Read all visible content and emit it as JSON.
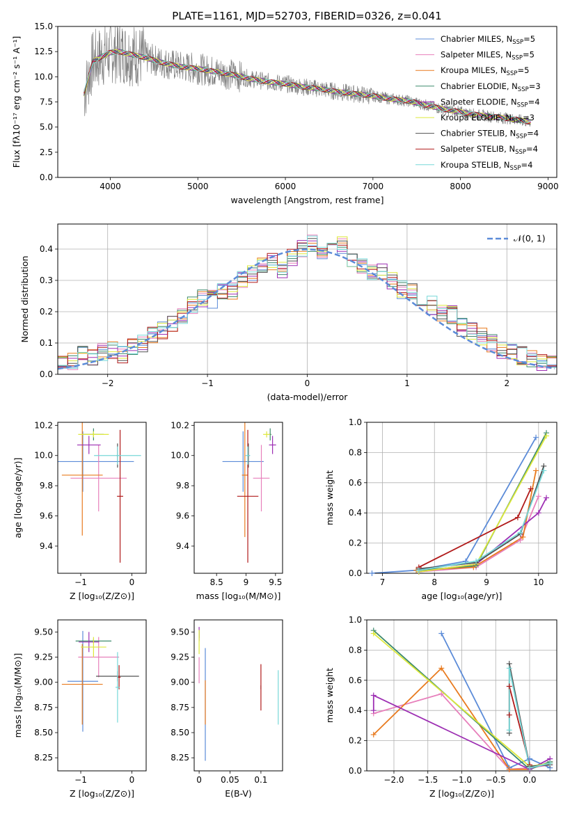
{
  "figure": {
    "title": "PLATE=1161, MJD=52703, FIBERID=0326, z=0.041"
  },
  "series_colors": {
    "Chabrier MILES": "#5b8bd8",
    "Salpeter MILES": "#e77fbb",
    "Kroupa MILES": "#e87a1e",
    "Chabrier ELODIE": "#3d8a6d",
    "Salpeter ELODIE": "#9d2fb3",
    "Kroupa ELODIE": "#dde83a",
    "Chabrier STELIB": "#505050",
    "Salpeter STELIB": "#b01919",
    "Kroupa STELIB": "#77d8d8"
  },
  "chart_data": [
    {
      "id": "spectrum",
      "type": "line",
      "xlabel": "wavelength [Angstrom, rest frame]",
      "ylabel": "Flux [fλ10⁻¹⁷ erg cm⁻² s⁻¹ A⁻¹]",
      "xlim": [
        3400,
        9100
      ],
      "ylim": [
        0,
        15
      ],
      "xticks": [
        4000,
        5000,
        6000,
        7000,
        8000,
        9000
      ],
      "yticks": [
        0.0,
        2.5,
        5.0,
        7.5,
        10.0,
        12.5,
        15.0
      ],
      "grid": false,
      "legend_position": "top-right",
      "legend": [
        {
          "name": "Chabrier MILES",
          "nssp": "5"
        },
        {
          "name": "Salpeter MILES",
          "nssp": "5"
        },
        {
          "name": "Kroupa MILES",
          "nssp": "5"
        },
        {
          "name": "Chabrier ELODIE",
          "nssp": "3"
        },
        {
          "name": "Salpeter ELODIE",
          "nssp": "4"
        },
        {
          "name": "Kroupa ELODIE",
          "nssp": "3"
        },
        {
          "name": "Chabrier STELIB",
          "nssp": "4"
        },
        {
          "name": "Salpeter STELIB",
          "nssp": "4"
        },
        {
          "name": "Kroupa STELIB",
          "nssp": "4"
        }
      ],
      "data_envelope": {
        "x": [
          3700,
          3800,
          3900,
          4000,
          4100,
          4200,
          4400,
          4600,
          4800,
          5000,
          5200,
          5400,
          5600,
          5800,
          6000,
          6200,
          6400,
          6600,
          6800,
          7000,
          7200,
          7400,
          7600,
          7800,
          8000,
          8200,
          8400,
          8600,
          8800
        ],
        "y": [
          8.3,
          11.5,
          12.0,
          12.4,
          12.5,
          12.3,
          11.9,
          11.4,
          11.0,
          10.8,
          10.5,
          10.2,
          9.8,
          9.5,
          9.3,
          9.0,
          8.8,
          8.5,
          8.3,
          8.1,
          7.8,
          7.6,
          7.2,
          6.8,
          6.5,
          6.2,
          6.0,
          5.8,
          5.5
        ]
      }
    },
    {
      "id": "residuals",
      "type": "histogram",
      "xlabel": "(data-model)/error",
      "ylabel": "Normed distribution",
      "xlim": [
        -2.5,
        2.5
      ],
      "ylim": [
        0,
        0.48
      ],
      "xticks": [
        -2,
        -1,
        0,
        1,
        2
      ],
      "yticks": [
        0.0,
        0.1,
        0.2,
        0.3,
        0.4
      ],
      "grid": true,
      "legend_position": "top-right",
      "legend": [
        "N(0,1)"
      ],
      "bin_edges_start": -2.5,
      "bin_width": 0.1,
      "histogram": [
        0.03,
        0.04,
        0.06,
        0.05,
        0.07,
        0.08,
        0.06,
        0.09,
        0.1,
        0.13,
        0.14,
        0.16,
        0.19,
        0.22,
        0.24,
        0.24,
        0.26,
        0.27,
        0.3,
        0.32,
        0.35,
        0.36,
        0.33,
        0.37,
        0.4,
        0.42,
        0.38,
        0.4,
        0.41,
        0.37,
        0.35,
        0.32,
        0.33,
        0.3,
        0.27,
        0.26,
        0.23,
        0.22,
        0.2,
        0.19,
        0.15,
        0.14,
        0.12,
        0.1,
        0.08,
        0.07,
        0.06,
        0.05,
        0.04,
        0.04
      ]
    },
    {
      "id": "age-vs-Z",
      "type": "errorbar",
      "xlabel": "Z [log₁₀(Z/Z⊙)]",
      "ylabel": "age  [log₁₀(age/yr)]",
      "xlim": [
        -1.45,
        0.28
      ],
      "ylim": [
        9.22,
        10.22
      ],
      "xticks": [
        -1,
        0
      ],
      "yticks": [
        9.4,
        9.6,
        9.8,
        10.0,
        10.2
      ],
      "points": [
        {
          "series": "Chabrier MILES",
          "x": -0.96,
          "y": 9.96,
          "xerr": 1.0,
          "yerr": 0.2
        },
        {
          "series": "Salpeter MILES",
          "x": -0.65,
          "y": 9.85,
          "xerr": 0.55,
          "yerr": 0.22
        },
        {
          "series": "Kroupa MILES",
          "x": -0.97,
          "y": 9.87,
          "xerr": 0.4,
          "yerr": 0.4
        },
        {
          "series": "Chabrier ELODIE",
          "x": -0.75,
          "y": 10.14,
          "xerr": 0.2,
          "yerr": 0.04
        },
        {
          "series": "Salpeter ELODIE",
          "x": -0.84,
          "y": 10.07,
          "xerr": 0.23,
          "yerr": 0.06
        },
        {
          "series": "Kroupa ELODIE",
          "x": -0.75,
          "y": 10.14,
          "xerr": 0.3,
          "yerr": 0.02
        },
        {
          "series": "Chabrier STELIB",
          "x": -0.28,
          "y": 10.0,
          "xerr": 0.02,
          "yerr": 0.08
        },
        {
          "series": "Salpeter STELIB",
          "x": -0.23,
          "y": 9.73,
          "xerr": 0.06,
          "yerr": 0.44
        },
        {
          "series": "Kroupa STELIB",
          "x": -0.28,
          "y": 10.0,
          "xerr": 0.46,
          "yerr": 0.06
        }
      ]
    },
    {
      "id": "age-vs-mass",
      "type": "errorbar",
      "xlabel": "mass [log₁₀(M/M⊙)]",
      "ylabel": "",
      "xlim": [
        8.12,
        9.62
      ],
      "ylim": [
        9.22,
        10.22
      ],
      "xticks": [
        8.5,
        9.0,
        9.5
      ],
      "yticks": [
        9.4,
        9.6,
        9.8,
        10.0,
        10.2
      ],
      "points": [
        {
          "series": "Chabrier MILES",
          "x": 8.95,
          "y": 9.96,
          "xerr": 0.35,
          "yerr": 0.2
        },
        {
          "series": "Salpeter MILES",
          "x": 9.26,
          "y": 9.85,
          "xerr": 0.14,
          "yerr": 0.22
        },
        {
          "series": "Kroupa MILES",
          "x": 8.98,
          "y": 9.87,
          "xerr": 0.05,
          "yerr": 0.41
        },
        {
          "series": "Chabrier ELODIE",
          "x": 9.41,
          "y": 10.14,
          "xerr": 0.02,
          "yerr": 0.04
        },
        {
          "series": "Salpeter ELODIE",
          "x": 9.45,
          "y": 10.07,
          "xerr": 0.06,
          "yerr": 0.06
        },
        {
          "series": "Kroupa ELODIE",
          "x": 9.35,
          "y": 10.14,
          "xerr": 0.06,
          "yerr": 0.02
        },
        {
          "series": "Chabrier STELIB",
          "x": 9.04,
          "y": 10.0,
          "xerr": 0.02,
          "yerr": 0.08
        },
        {
          "series": "Salpeter STELIB",
          "x": 9.03,
          "y": 9.73,
          "xerr": 0.18,
          "yerr": 0.44
        },
        {
          "series": "Kroupa STELIB",
          "x": 9.03,
          "y": 10.0,
          "xerr": 0.04,
          "yerr": 0.06
        }
      ]
    },
    {
      "id": "weight-vs-age",
      "type": "line",
      "xlabel": "age  [log₁₀(age/yr)]",
      "ylabel": "mass weight",
      "xlim": [
        6.7,
        10.35
      ],
      "ylim": [
        0,
        1
      ],
      "xticks": [
        7,
        8,
        9,
        10
      ],
      "yticks": [
        0.0,
        0.2,
        0.4,
        0.6,
        0.8,
        1.0
      ],
      "grid": true,
      "series": [
        {
          "color": "Chabrier MILES",
          "x": [
            6.8,
            7.65,
            8.6,
            9.95
          ],
          "y": [
            0.0,
            0.02,
            0.08,
            0.9
          ]
        },
        {
          "color": "Salpeter MILES",
          "x": [
            7.7,
            8.8,
            9.65,
            10.0
          ],
          "y": [
            0.01,
            0.04,
            0.22,
            0.51
          ]
        },
        {
          "color": "Kroupa MILES",
          "x": [
            7.65,
            8.75,
            9.7,
            9.95
          ],
          "y": [
            0.02,
            0.04,
            0.24,
            0.68
          ]
        },
        {
          "color": "Chabrier ELODIE",
          "x": [
            7.7,
            8.8,
            10.15
          ],
          "y": [
            0.02,
            0.05,
            0.93
          ]
        },
        {
          "color": "Salpeter ELODIE",
          "x": [
            7.7,
            8.8,
            10.0,
            10.15
          ],
          "y": [
            0.01,
            0.06,
            0.4,
            0.5
          ]
        },
        {
          "color": "Kroupa ELODIE",
          "x": [
            7.7,
            8.8,
            10.15
          ],
          "y": [
            0.01,
            0.06,
            0.91
          ]
        },
        {
          "color": "Chabrier STELIB",
          "x": [
            7.7,
            8.8,
            9.65,
            10.1
          ],
          "y": [
            0.03,
            0.07,
            0.26,
            0.71
          ]
        },
        {
          "color": "Salpeter STELIB",
          "x": [
            7.7,
            9.6,
            9.85
          ],
          "y": [
            0.04,
            0.37,
            0.56
          ]
        },
        {
          "color": "Kroupa STELIB",
          "x": [
            7.7,
            8.8,
            9.65,
            10.1
          ],
          "y": [
            0.02,
            0.08,
            0.27,
            0.68
          ]
        }
      ]
    },
    {
      "id": "mass-vs-Z",
      "type": "errorbar",
      "xlabel": "Z [log₁₀(Z/Z⊙)]",
      "ylabel": "mass [log₁₀(M/M⊙)]",
      "xlim": [
        -1.45,
        0.28
      ],
      "ylim": [
        8.12,
        9.62
      ],
      "xticks": [
        -1,
        0
      ],
      "yticks": [
        8.25,
        8.5,
        8.75,
        9.0,
        9.25,
        9.5
      ],
      "points": [
        {
          "series": "Chabrier MILES",
          "x": -0.96,
          "y": 9.01,
          "xerr": 0.3,
          "yerr": 0.5
        },
        {
          "series": "Salpeter MILES",
          "x": -0.65,
          "y": 9.25,
          "xerr": 0.4,
          "yerr": 0.2
        },
        {
          "series": "Kroupa MILES",
          "x": -0.97,
          "y": 8.98,
          "xerr": 0.4,
          "yerr": 0.4
        },
        {
          "series": "Chabrier ELODIE",
          "x": -0.75,
          "y": 9.41,
          "xerr": 0.35,
          "yerr": 0.02
        },
        {
          "series": "Salpeter ELODIE",
          "x": -0.84,
          "y": 9.4,
          "xerr": 0.2,
          "yerr": 0.1
        },
        {
          "series": "Kroupa ELODIE",
          "x": -0.75,
          "y": 9.35,
          "xerr": 0.25,
          "yerr": 0.1
        },
        {
          "series": "Chabrier STELIB",
          "x": -0.28,
          "y": 9.06,
          "xerr": 0.42,
          "yerr": 0.05
        },
        {
          "series": "Salpeter STELIB",
          "x": -0.25,
          "y": 9.05,
          "xerr": 0.03,
          "yerr": 0.12
        },
        {
          "series": "Kroupa STELIB",
          "x": -0.28,
          "y": 8.95,
          "xerr": 0.04,
          "yerr": 0.35
        }
      ]
    },
    {
      "id": "mass-vs-ebv",
      "type": "errorbar",
      "xlabel": "E(B-V)",
      "ylabel": "",
      "xlim": [
        -0.008,
        0.135
      ],
      "ylim": [
        8.12,
        9.62
      ],
      "xticks": [
        0.0,
        0.05,
        0.1
      ],
      "yticks": [
        8.25,
        8.5,
        8.75,
        9.0,
        9.25,
        9.5
      ],
      "points": [
        {
          "series": "Chabrier MILES",
          "x": 0.01,
          "y": 8.78,
          "xerr": 0,
          "yerr": 0.56
        },
        {
          "series": "Salpeter MILES",
          "x": 0.0,
          "y": 9.12,
          "xerr": 0,
          "yerr": 0.13
        },
        {
          "series": "Kroupa MILES",
          "x": 0.01,
          "y": 8.8,
          "xerr": 0,
          "yerr": 0.22
        },
        {
          "series": "Chabrier ELODIE",
          "x": 0.0,
          "y": 9.48,
          "xerr": 0,
          "yerr": 0.04
        },
        {
          "series": "Salpeter ELODIE",
          "x": 0.0,
          "y": 9.48,
          "xerr": 0,
          "yerr": 0.07
        },
        {
          "series": "Kroupa ELODIE",
          "x": 0.0,
          "y": 9.4,
          "xerr": 0,
          "yerr": 0.12
        },
        {
          "series": "Chabrier STELIB",
          "x": 0.1,
          "y": 8.95,
          "xerr": 0,
          "yerr": 0.02
        },
        {
          "series": "Salpeter STELIB",
          "x": 0.1,
          "y": 8.95,
          "xerr": 0,
          "yerr": 0.23
        },
        {
          "series": "Kroupa STELIB",
          "x": 0.128,
          "y": 8.85,
          "xerr": 0,
          "yerr": 0.27
        }
      ]
    },
    {
      "id": "weight-vs-Z",
      "type": "line",
      "xlabel": "Z [log₁₀(Z/Z⊙)]",
      "ylabel": "mass weight",
      "xlim": [
        -2.4,
        0.4
      ],
      "ylim": [
        0,
        1
      ],
      "xticks": [
        -2.0,
        -1.5,
        -1.0,
        -0.5,
        0.0
      ],
      "yticks": [
        0.0,
        0.2,
        0.4,
        0.6,
        0.8,
        1.0
      ],
      "grid": true,
      "series": [
        {
          "color": "Chabrier MILES",
          "x": [
            -1.3,
            -0.3,
            0.0,
            0.3
          ],
          "y": [
            0.91,
            0.02,
            0.08,
            0.02
          ]
        },
        {
          "color": "Salpeter MILES",
          "x": [
            -2.3,
            -1.3,
            -0.3,
            0.0,
            0.3
          ],
          "y": [
            0.38,
            0.51,
            0.01,
            0.02,
            0.04
          ]
        },
        {
          "color": "Kroupa MILES",
          "x": [
            -2.3,
            -1.3,
            -0.3,
            0.0,
            0.3
          ],
          "y": [
            0.24,
            0.68,
            0.01,
            0.01,
            0.06
          ]
        },
        {
          "color": "Chabrier ELODIE",
          "x": [
            -2.3,
            0.0,
            0.3
          ],
          "y": [
            0.93,
            0.01,
            0.06
          ]
        },
        {
          "color": "Salpeter ELODIE",
          "x": [
            -2.3,
            -2.3,
            0.0,
            0.3
          ],
          "y": [
            0.4,
            0.5,
            0.01,
            0.08
          ]
        },
        {
          "color": "Kroupa ELODIE",
          "x": [
            -2.3,
            0.0,
            0.3
          ],
          "y": [
            0.91,
            0.03,
            0.05
          ]
        },
        {
          "color": "Chabrier STELIB",
          "x": [
            -0.3,
            -0.3,
            0.0,
            0.3
          ],
          "y": [
            0.25,
            0.71,
            0.03,
            0.04
          ]
        },
        {
          "color": "Salpeter STELIB",
          "x": [
            -0.3,
            -0.3,
            0.0
          ],
          "y": [
            0.37,
            0.56,
            0.04
          ]
        },
        {
          "color": "Kroupa STELIB",
          "x": [
            -0.3,
            -0.3,
            0.0,
            0.3
          ],
          "y": [
            0.27,
            0.68,
            0.02,
            0.05
          ]
        }
      ]
    }
  ]
}
